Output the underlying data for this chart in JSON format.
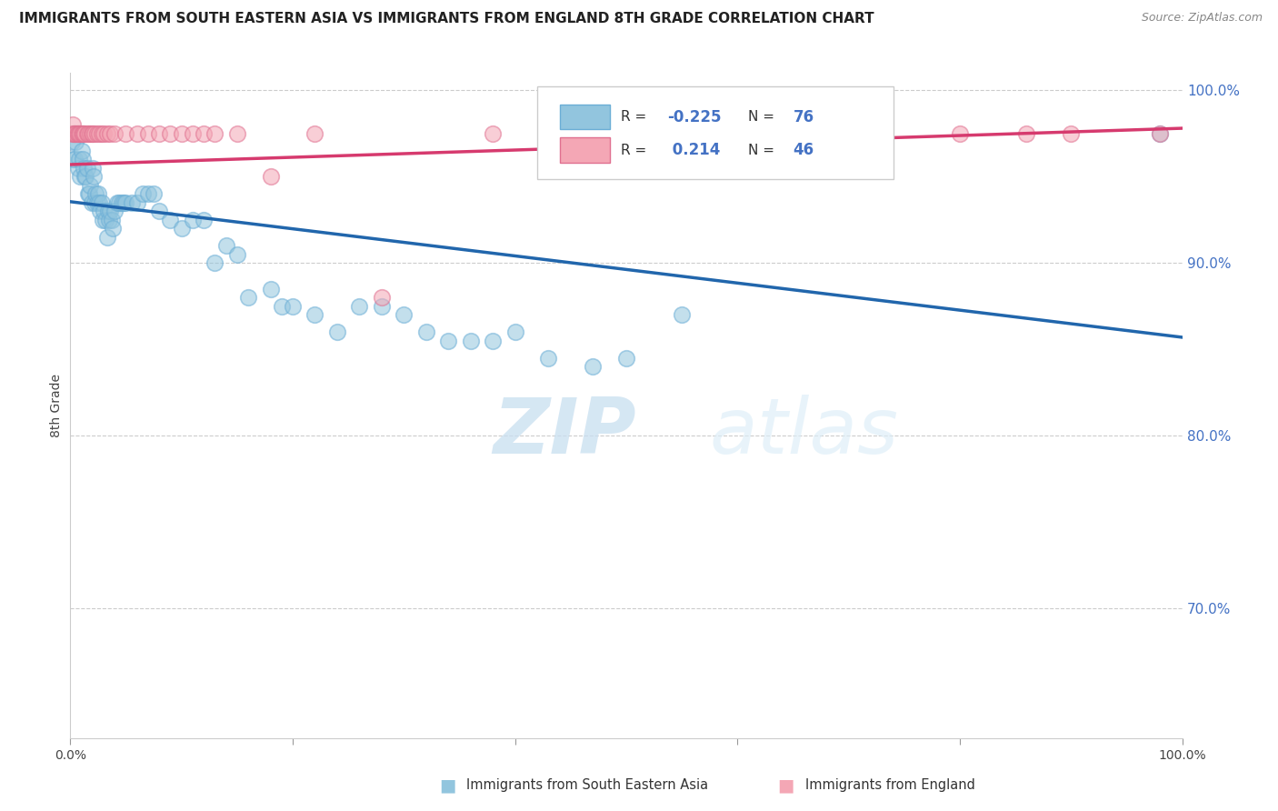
{
  "title": "IMMIGRANTS FROM SOUTH EASTERN ASIA VS IMMIGRANTS FROM ENGLAND 8TH GRADE CORRELATION CHART",
  "source": "Source: ZipAtlas.com",
  "ylabel": "8th Grade",
  "legend_blue_label": "Immigrants from South Eastern Asia",
  "legend_pink_label": "Immigrants from England",
  "blue_color": "#92c5de",
  "blue_color_edge": "#6baed6",
  "blue_line_color": "#2166ac",
  "pink_color": "#f4a7b5",
  "pink_color_edge": "#e07090",
  "pink_line_color": "#d63a6e",
  "watermark_zip": "ZIP",
  "watermark_atlas": "atlas",
  "blue_scatter_x": [
    0.001,
    0.002,
    0.003,
    0.004,
    0.005,
    0.006,
    0.007,
    0.008,
    0.009,
    0.01,
    0.011,
    0.012,
    0.013,
    0.014,
    0.015,
    0.016,
    0.017,
    0.018,
    0.019,
    0.02,
    0.021,
    0.022,
    0.023,
    0.024,
    0.025,
    0.026,
    0.027,
    0.028,
    0.029,
    0.03,
    0.032,
    0.033,
    0.034,
    0.035,
    0.036,
    0.037,
    0.038,
    0.04,
    0.042,
    0.044,
    0.046,
    0.048,
    0.05,
    0.055,
    0.06,
    0.065,
    0.07,
    0.075,
    0.08,
    0.09,
    0.1,
    0.11,
    0.12,
    0.13,
    0.14,
    0.15,
    0.16,
    0.18,
    0.19,
    0.2,
    0.22,
    0.24,
    0.26,
    0.28,
    0.3,
    0.32,
    0.34,
    0.36,
    0.38,
    0.4,
    0.43,
    0.47,
    0.5,
    0.55,
    0.7,
    0.98
  ],
  "blue_scatter_y": [
    0.97,
    0.96,
    0.975,
    0.96,
    0.97,
    0.975,
    0.955,
    0.96,
    0.95,
    0.965,
    0.96,
    0.955,
    0.95,
    0.95,
    0.955,
    0.94,
    0.94,
    0.945,
    0.935,
    0.955,
    0.95,
    0.935,
    0.94,
    0.935,
    0.94,
    0.935,
    0.93,
    0.935,
    0.925,
    0.93,
    0.925,
    0.915,
    0.93,
    0.925,
    0.93,
    0.925,
    0.92,
    0.93,
    0.935,
    0.935,
    0.935,
    0.935,
    0.935,
    0.935,
    0.935,
    0.94,
    0.94,
    0.94,
    0.93,
    0.925,
    0.92,
    0.925,
    0.925,
    0.9,
    0.91,
    0.905,
    0.88,
    0.885,
    0.875,
    0.875,
    0.87,
    0.86,
    0.875,
    0.875,
    0.87,
    0.86,
    0.855,
    0.855,
    0.855,
    0.86,
    0.845,
    0.84,
    0.845,
    0.87,
    0.975,
    0.975
  ],
  "pink_scatter_x": [
    0.001,
    0.002,
    0.003,
    0.004,
    0.005,
    0.006,
    0.007,
    0.008,
    0.009,
    0.01,
    0.011,
    0.012,
    0.013,
    0.015,
    0.016,
    0.018,
    0.019,
    0.02,
    0.022,
    0.024,
    0.026,
    0.028,
    0.03,
    0.033,
    0.036,
    0.04,
    0.05,
    0.06,
    0.07,
    0.08,
    0.09,
    0.1,
    0.11,
    0.12,
    0.13,
    0.15,
    0.18,
    0.22,
    0.28,
    0.38,
    0.5,
    0.65,
    0.8,
    0.86,
    0.9,
    0.98
  ],
  "pink_scatter_y": [
    0.975,
    0.98,
    0.975,
    0.975,
    0.975,
    0.975,
    0.975,
    0.975,
    0.975,
    0.975,
    0.975,
    0.975,
    0.975,
    0.975,
    0.975,
    0.975,
    0.975,
    0.975,
    0.975,
    0.975,
    0.975,
    0.975,
    0.975,
    0.975,
    0.975,
    0.975,
    0.975,
    0.975,
    0.975,
    0.975,
    0.975,
    0.975,
    0.975,
    0.975,
    0.975,
    0.975,
    0.95,
    0.975,
    0.88,
    0.975,
    0.975,
    0.975,
    0.975,
    0.975,
    0.975,
    0.975
  ],
  "blue_trend_x": [
    0.0,
    1.0
  ],
  "blue_trend_y": [
    0.9355,
    0.857
  ],
  "pink_trend_x": [
    0.0,
    1.0
  ],
  "pink_trend_y": [
    0.957,
    0.978
  ],
  "xlim": [
    0.0,
    1.0
  ],
  "ylim": [
    0.625,
    1.01
  ],
  "yticks": [
    1.0,
    0.9,
    0.8,
    0.7
  ],
  "ytick_labels": [
    "100.0%",
    "90.0%",
    "80.0%",
    "70.0%"
  ],
  "xtick_positions": [
    0.0,
    0.2,
    0.4,
    0.6,
    0.8,
    1.0
  ],
  "xtick_labels": [
    "0.0%",
    "",
    "",
    "",
    "",
    "100.0%"
  ]
}
